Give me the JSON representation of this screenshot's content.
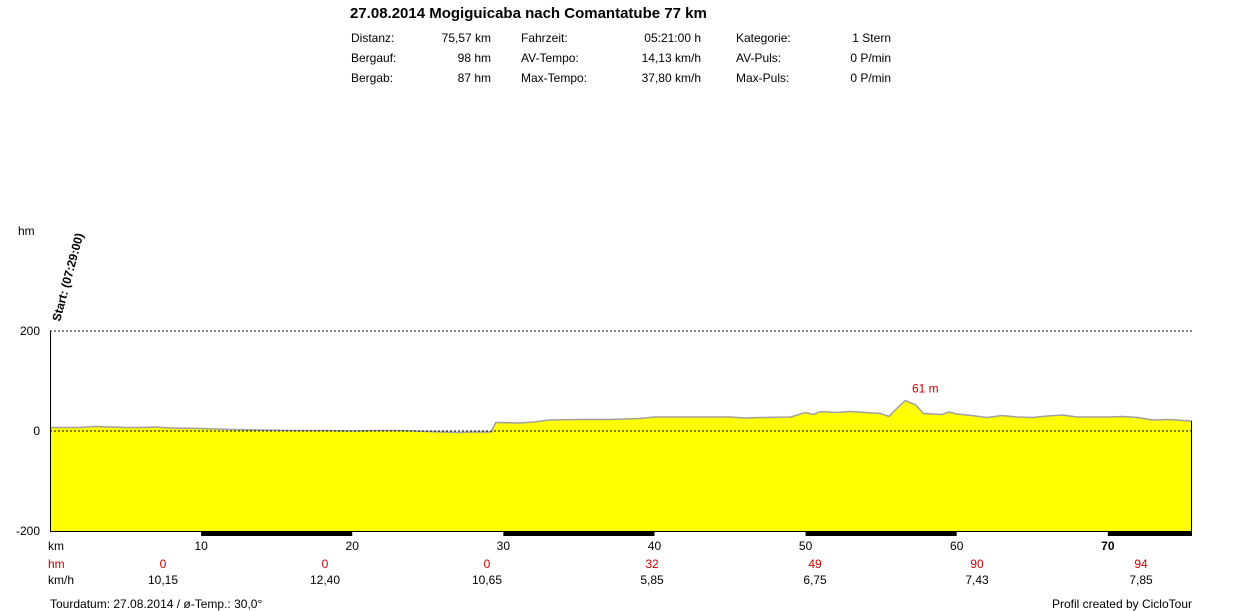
{
  "header": {
    "title": "27.08.2014 Mogiguicaba nach Comantatube 77 km",
    "stats": [
      [
        {
          "label": "Distanz:",
          "value": "75,57 km"
        },
        {
          "label": "Fahrzeit:",
          "value": "05:21:00 h"
        },
        {
          "label": "Kategorie:",
          "value": "1 Stern"
        }
      ],
      [
        {
          "label": "Bergauf:",
          "value": "98 hm"
        },
        {
          "label": "AV-Tempo:",
          "value": "14,13 km/h"
        },
        {
          "label": "AV-Puls:",
          "value": "0 P/min"
        }
      ],
      [
        {
          "label": "Bergab:",
          "value": "87 hm"
        },
        {
          "label": "Max-Tempo:",
          "value": "37,80 km/h"
        },
        {
          "label": "Max-Puls:",
          "value": "0 P/min"
        }
      ]
    ]
  },
  "chart_data": {
    "type": "area",
    "ylabel": "hm",
    "xlabel": "km",
    "ylim": [
      -200,
      200
    ],
    "yticks": [
      "200",
      "0",
      "-200"
    ],
    "xlim": [
      0,
      75.57
    ],
    "xticks": [
      10,
      20,
      30,
      40,
      50,
      60,
      70
    ],
    "start_label": "Start: (07:29:00)",
    "peak_label": "61 m",
    "peak": {
      "x": 56.6,
      "y": 61
    },
    "fill_color": "#ffff00",
    "gridlines": [
      200,
      0
    ],
    "km_labels": [
      "km",
      "10",
      "20",
      "30",
      "40",
      "50",
      "60",
      "70"
    ],
    "hm_row": {
      "label": "hm",
      "values": [
        "0",
        "0",
        "0",
        "32",
        "49",
        "90",
        "94"
      ]
    },
    "speed_row": {
      "label": "km/h",
      "values": [
        "10,15",
        "12,40",
        "10,65",
        "5,85",
        "6,75",
        "7,43",
        "7,85"
      ]
    },
    "profile": [
      [
        0,
        7
      ],
      [
        2,
        7
      ],
      [
        3,
        9
      ],
      [
        4,
        8
      ],
      [
        5,
        7
      ],
      [
        6,
        7
      ],
      [
        7,
        8
      ],
      [
        8,
        6
      ],
      [
        10,
        5
      ],
      [
        11,
        4
      ],
      [
        12,
        3
      ],
      [
        14,
        2
      ],
      [
        16,
        1
      ],
      [
        18,
        1
      ],
      [
        20,
        0
      ],
      [
        22,
        1
      ],
      [
        23,
        1
      ],
      [
        24,
        0
      ],
      [
        25,
        -1
      ],
      [
        26,
        -2
      ],
      [
        27,
        -3
      ],
      [
        28,
        -2
      ],
      [
        29.2,
        -2
      ],
      [
        29.5,
        17
      ],
      [
        31,
        16
      ],
      [
        32,
        18
      ],
      [
        33,
        22
      ],
      [
        35,
        23
      ],
      [
        37,
        23
      ],
      [
        38,
        24
      ],
      [
        39,
        25
      ],
      [
        40,
        28
      ],
      [
        43,
        28
      ],
      [
        45,
        28
      ],
      [
        46,
        26
      ],
      [
        47,
        27
      ],
      [
        49,
        28
      ],
      [
        50,
        37
      ],
      [
        50.5,
        33
      ],
      [
        51,
        39
      ],
      [
        52,
        37
      ],
      [
        53,
        39
      ],
      [
        54,
        37
      ],
      [
        55,
        35
      ],
      [
        55.5,
        29
      ],
      [
        56,
        44
      ],
      [
        56.6,
        61
      ],
      [
        57.3,
        52
      ],
      [
        57.8,
        35
      ],
      [
        59,
        33
      ],
      [
        59.5,
        38
      ],
      [
        60,
        34
      ],
      [
        61,
        31
      ],
      [
        62,
        27
      ],
      [
        63,
        31
      ],
      [
        64,
        28
      ],
      [
        65,
        27
      ],
      [
        66,
        30
      ],
      [
        67,
        32
      ],
      [
        68,
        28
      ],
      [
        69,
        28
      ],
      [
        70,
        28
      ],
      [
        71,
        29
      ],
      [
        72,
        27
      ],
      [
        73,
        22
      ],
      [
        74,
        23
      ],
      [
        75,
        21
      ],
      [
        75.57,
        20
      ]
    ]
  },
  "footer": {
    "left": "Tourdatum: 27.08.2014  /  ø-Temp.: 30,0°",
    "right": "Profil created by CicloTour"
  }
}
